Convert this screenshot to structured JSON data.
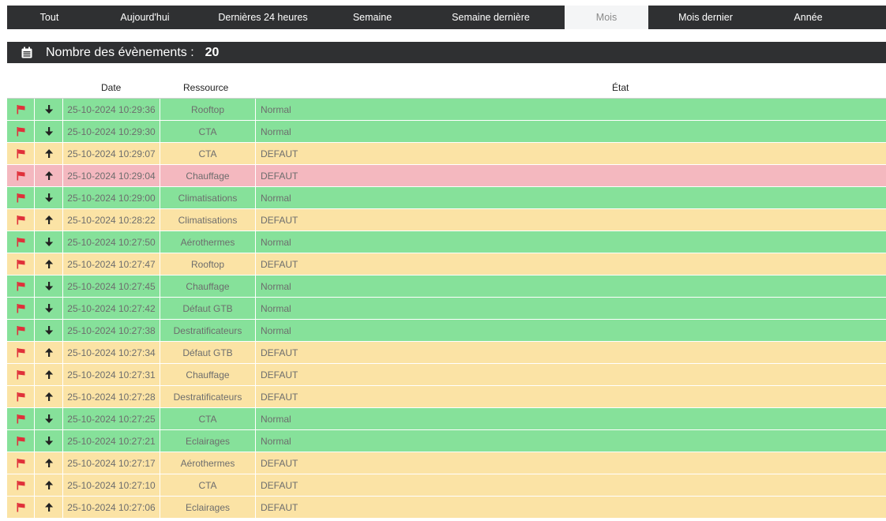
{
  "tabs": [
    {
      "label": "Tout",
      "width": 107,
      "active": false
    },
    {
      "label": "Aujourd'hui",
      "width": 135,
      "active": false
    },
    {
      "label": "Dernières 24 heures",
      "width": 164,
      "active": false
    },
    {
      "label": "Semaine",
      "width": 113,
      "active": false
    },
    {
      "label": "Semaine dernière",
      "width": 187,
      "active": false
    },
    {
      "label": "Mois",
      "width": 106,
      "active": true
    },
    {
      "label": "Mois dernier",
      "width": 145,
      "active": false
    },
    {
      "label": "Année",
      "width": 115,
      "active": false
    }
  ],
  "header": {
    "label": "Nombre des évènements :",
    "count": "20",
    "icon": "calendar-icon"
  },
  "columns": {
    "date": "Date",
    "resource": "Ressource",
    "state": "État"
  },
  "colors": {
    "normal": "#86e19a",
    "defaut": "#fbe3a5",
    "chauffage": "#f4b8bf",
    "flag": "#e0303a",
    "dark": "#2f3032"
  },
  "rows": [
    {
      "date": "25-10-2024 10:29:36",
      "resource": "Rooftop",
      "state": "Normal",
      "dir": "down",
      "color": "normal"
    },
    {
      "date": "25-10-2024 10:29:30",
      "resource": "CTA",
      "state": "Normal",
      "dir": "down",
      "color": "normal"
    },
    {
      "date": "25-10-2024 10:29:07",
      "resource": "CTA",
      "state": "DEFAUT",
      "dir": "up",
      "color": "defaut"
    },
    {
      "date": "25-10-2024 10:29:04",
      "resource": "Chauffage",
      "state": "DEFAUT",
      "dir": "up",
      "color": "chauff"
    },
    {
      "date": "25-10-2024 10:29:00",
      "resource": "Climatisations",
      "state": "Normal",
      "dir": "down",
      "color": "normal"
    },
    {
      "date": "25-10-2024 10:28:22",
      "resource": "Climatisations",
      "state": "DEFAUT",
      "dir": "up",
      "color": "defaut"
    },
    {
      "date": "25-10-2024 10:27:50",
      "resource": "Aérothermes",
      "state": "Normal",
      "dir": "down",
      "color": "normal"
    },
    {
      "date": "25-10-2024 10:27:47",
      "resource": "Rooftop",
      "state": "DEFAUT",
      "dir": "up",
      "color": "defaut"
    },
    {
      "date": "25-10-2024 10:27:45",
      "resource": "Chauffage",
      "state": "Normal",
      "dir": "down",
      "color": "normal"
    },
    {
      "date": "25-10-2024 10:27:42",
      "resource": "Défaut GTB",
      "state": "Normal",
      "dir": "down",
      "color": "normal"
    },
    {
      "date": "25-10-2024 10:27:38",
      "resource": "Destratificateurs",
      "state": "Normal",
      "dir": "down",
      "color": "normal"
    },
    {
      "date": "25-10-2024 10:27:34",
      "resource": "Défaut GTB",
      "state": "DEFAUT",
      "dir": "up",
      "color": "defaut"
    },
    {
      "date": "25-10-2024 10:27:31",
      "resource": "Chauffage",
      "state": "DEFAUT",
      "dir": "up",
      "color": "defaut"
    },
    {
      "date": "25-10-2024 10:27:28",
      "resource": "Destratificateurs",
      "state": "DEFAUT",
      "dir": "up",
      "color": "defaut"
    },
    {
      "date": "25-10-2024 10:27:25",
      "resource": "CTA",
      "state": "Normal",
      "dir": "down",
      "color": "normal"
    },
    {
      "date": "25-10-2024 10:27:21",
      "resource": "Eclairages",
      "state": "Normal",
      "dir": "down",
      "color": "normal"
    },
    {
      "date": "25-10-2024 10:27:17",
      "resource": "Aérothermes",
      "state": "DEFAUT",
      "dir": "up",
      "color": "defaut"
    },
    {
      "date": "25-10-2024 10:27:10",
      "resource": "CTA",
      "state": "DEFAUT",
      "dir": "up",
      "color": "defaut"
    },
    {
      "date": "25-10-2024 10:27:06",
      "resource": "Eclairages",
      "state": "DEFAUT",
      "dir": "up",
      "color": "defaut"
    }
  ]
}
